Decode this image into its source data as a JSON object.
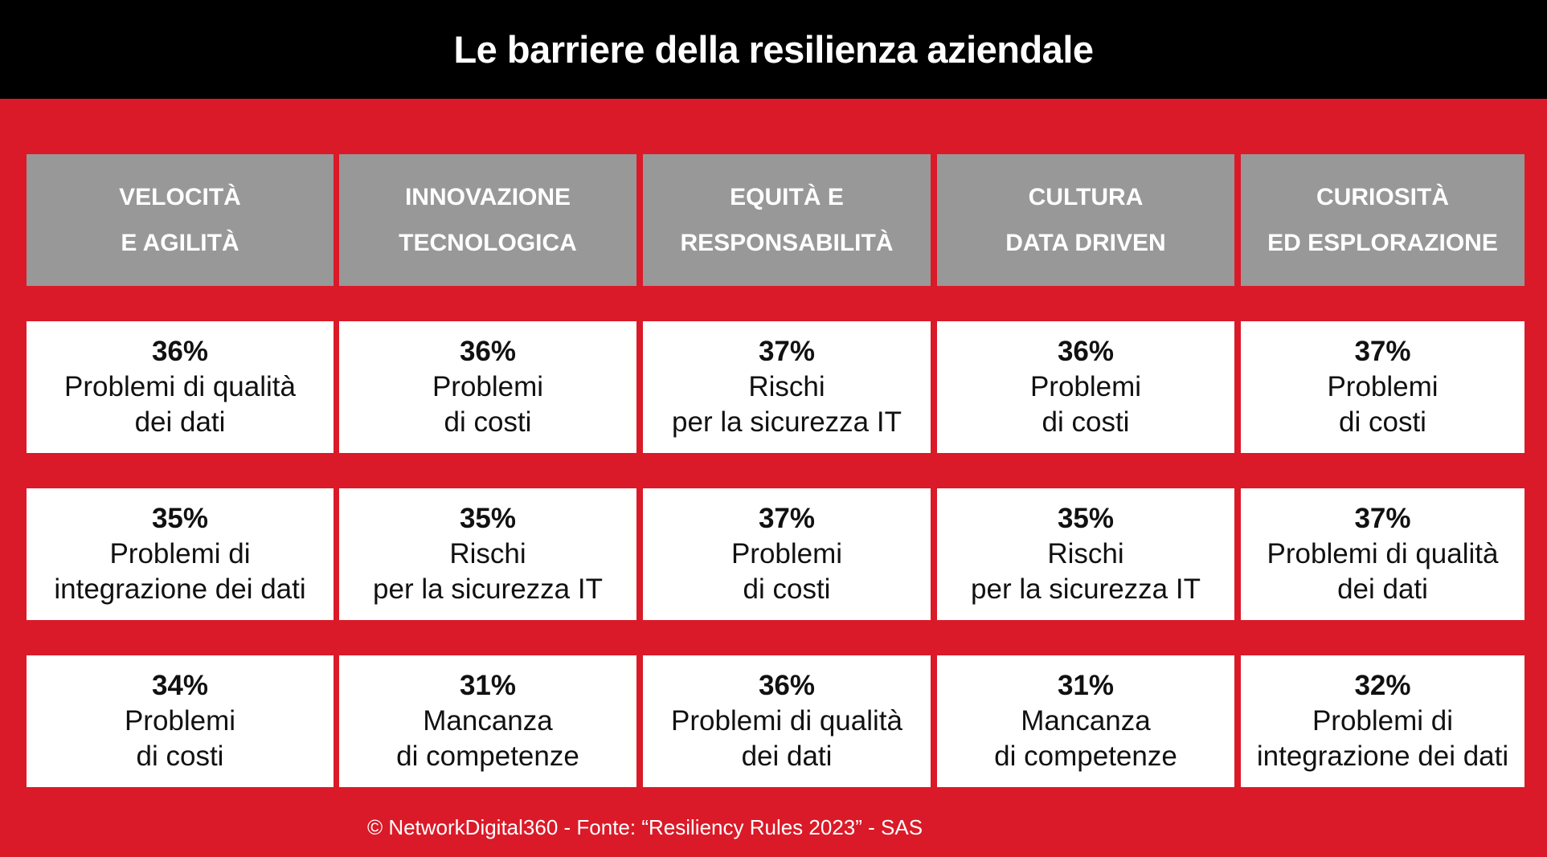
{
  "title": "Le barriere della resilienza aziendale",
  "columns": [
    {
      "line1": "VELOCITÀ",
      "line2": "E AGILITÀ",
      "items": [
        {
          "pct": "36%",
          "l1": "Problemi di qualità",
          "l2": "dei dati"
        },
        {
          "pct": "35%",
          "l1": "Problemi di",
          "l2": "integrazione dei dati"
        },
        {
          "pct": "34%",
          "l1": "Problemi",
          "l2": "di costi"
        }
      ]
    },
    {
      "line1": "INNOVAZIONE",
      "line2": "TECNOLOGICA",
      "items": [
        {
          "pct": "36%",
          "l1": "Problemi",
          "l2": "di costi"
        },
        {
          "pct": "35%",
          "l1": "Rischi",
          "l2": "per la sicurezza IT"
        },
        {
          "pct": "31%",
          "l1": "Mancanza",
          "l2": "di competenze"
        }
      ]
    },
    {
      "line1": "EQUITÀ E",
      "line2": "RESPONSABILITÀ",
      "items": [
        {
          "pct": "37%",
          "l1": "Rischi",
          "l2": "per la sicurezza IT"
        },
        {
          "pct": "37%",
          "l1": "Problemi",
          "l2": "di costi"
        },
        {
          "pct": "36%",
          "l1": "Problemi di qualità",
          "l2": "dei dati"
        }
      ]
    },
    {
      "line1": "CULTURA",
      "line2": "DATA DRIVEN",
      "items": [
        {
          "pct": "36%",
          "l1": "Problemi",
          "l2": "di costi"
        },
        {
          "pct": "35%",
          "l1": "Rischi",
          "l2": "per la sicurezza IT"
        },
        {
          "pct": "31%",
          "l1": "Mancanza",
          "l2": "di competenze"
        }
      ]
    },
    {
      "line1": "CURIOSITÀ",
      "line2": "ED ESPLORAZIONE",
      "items": [
        {
          "pct": "37%",
          "l1": "Problemi",
          "l2": "di costi"
        },
        {
          "pct": "37%",
          "l1": "Problemi di qualità",
          "l2": "dei dati"
        },
        {
          "pct": "32%",
          "l1": "Problemi di",
          "l2": "integrazione dei dati"
        }
      ]
    }
  ],
  "footer": "© NetworkDigital360 - Fonte: “Resiliency Rules 2023” - SAS"
}
